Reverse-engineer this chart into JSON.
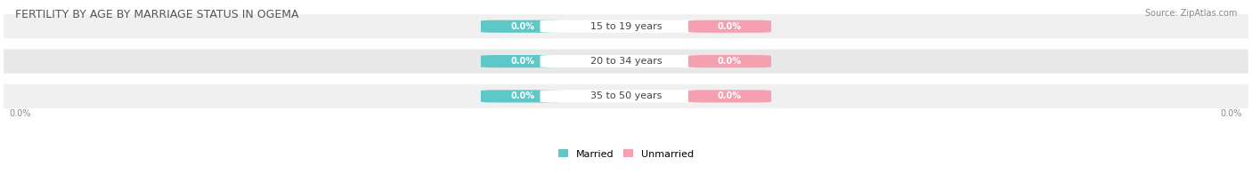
{
  "title": "FERTILITY BY AGE BY MARRIAGE STATUS IN OGEMA",
  "source": "Source: ZipAtlas.com",
  "categories": [
    "15 to 19 years",
    "20 to 34 years",
    "35 to 50 years"
  ],
  "married_values": [
    0.0,
    0.0,
    0.0
  ],
  "unmarried_values": [
    0.0,
    0.0,
    0.0
  ],
  "married_color": "#5ec8c8",
  "unmarried_color": "#f4a0b0",
  "row_bg_colors": [
    "#f0f0f0",
    "#e8e8e8",
    "#f0f0f0"
  ],
  "title_fontsize": 9,
  "source_fontsize": 7,
  "label_fontsize": 7,
  "value_fontsize": 7,
  "category_fontsize": 8,
  "left_label": "0.0%",
  "right_label": "0.0%",
  "legend_married": "Married",
  "legend_unmarried": "Unmarried",
  "background_color": "#ffffff"
}
